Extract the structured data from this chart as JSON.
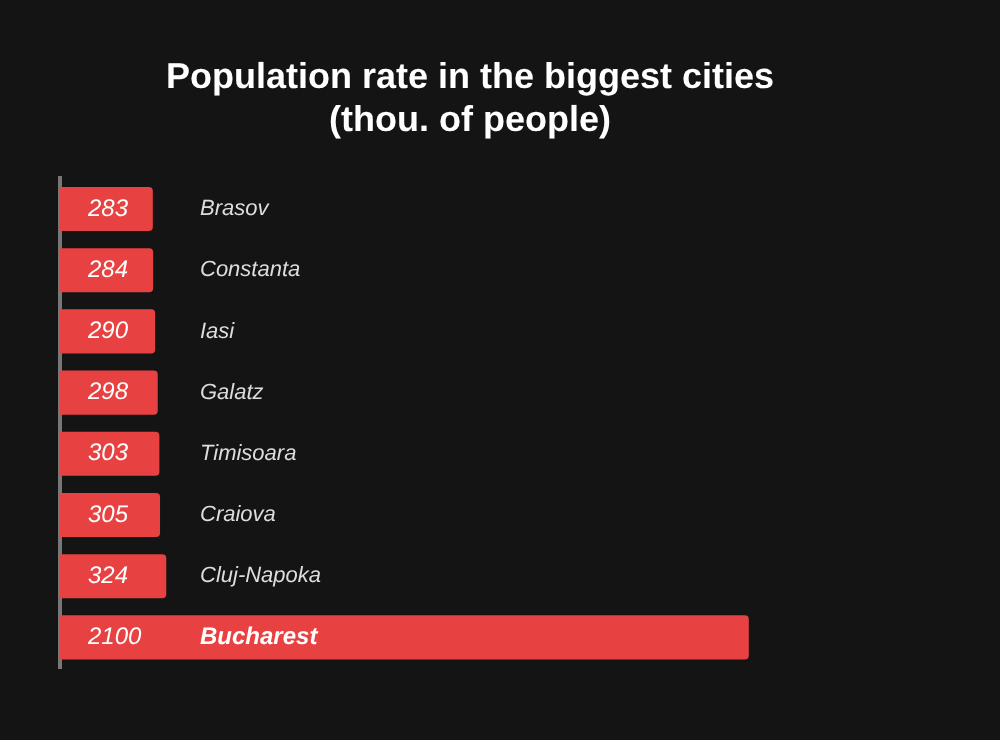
{
  "chart_data": {
    "type": "bar",
    "orientation": "horizontal",
    "title": "Population rate in the biggest cities (thou. of people)",
    "categories": [
      "Brasov",
      "Constanta",
      "Iasi",
      "Galatz",
      "Timisoara",
      "Craiova",
      "Cluj-Napoka",
      "Bucharest"
    ],
    "values": [
      283,
      284,
      290,
      298,
      303,
      305,
      324,
      2100
    ],
    "color": "#e84142",
    "data_labels": true
  }
}
